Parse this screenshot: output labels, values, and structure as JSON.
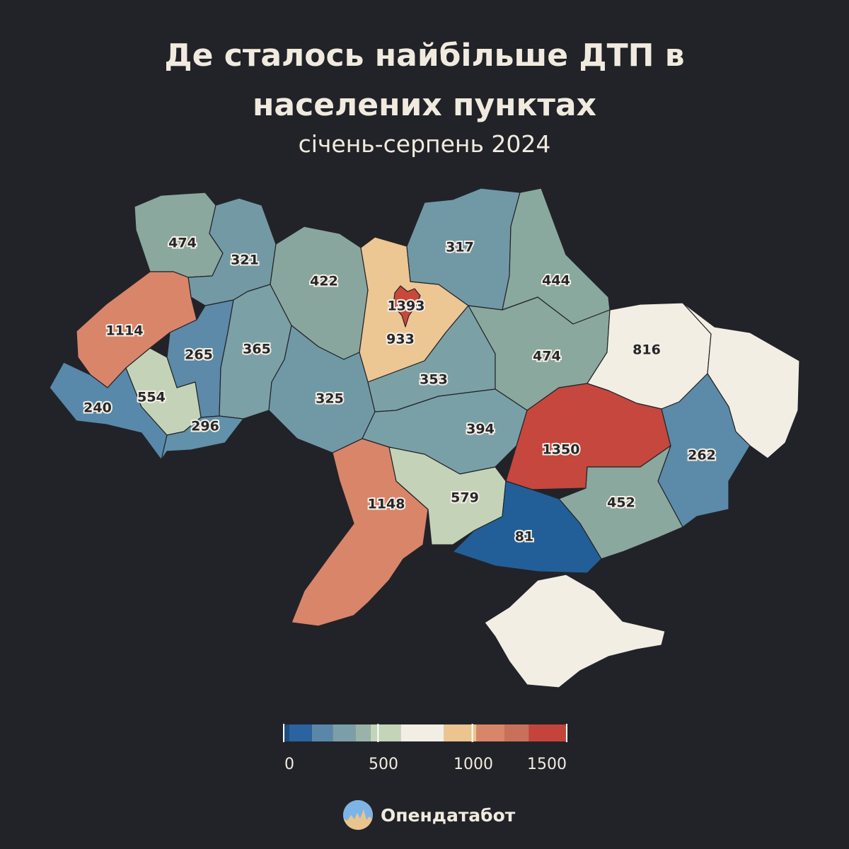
{
  "header": {
    "title_line1": "Де сталось найбільше ДТП в",
    "title_line2": "населених пунктах",
    "subtitle": "січень-серпень 2024"
  },
  "map_data": {
    "regions": [
      {
        "id": "volyn",
        "value": "474",
        "color": "#8aa89e"
      },
      {
        "id": "rivne",
        "value": "321",
        "color": "#7399a4"
      },
      {
        "id": "lviv",
        "value": "1114",
        "color": "#d9856a"
      },
      {
        "id": "ternopil",
        "value": "265",
        "color": "#5c8aa8"
      },
      {
        "id": "khmelnytskyi",
        "value": "365",
        "color": "#7ba0a6"
      },
      {
        "id": "zhytomyr",
        "value": "422",
        "color": "#88a69e"
      },
      {
        "id": "kyiv-oblast",
        "value": "933",
        "color": "#ecc693"
      },
      {
        "id": "kyiv-city",
        "value": "1393",
        "color": "#c8483c"
      },
      {
        "id": "chernihiv",
        "value": "317",
        "color": "#7099a5"
      },
      {
        "id": "sumy",
        "value": "444",
        "color": "#8aa99e"
      },
      {
        "id": "zakarpattia",
        "value": "240",
        "color": "#5889aa"
      },
      {
        "id": "ivano-frankivsk",
        "value": "554",
        "color": "#c4d3b8"
      },
      {
        "id": "chernivtsi",
        "value": "296",
        "color": "#6191ab"
      },
      {
        "id": "vinnytsia",
        "value": "325",
        "color": "#7099a5"
      },
      {
        "id": "cherkasy",
        "value": "353",
        "color": "#7ba1a7"
      },
      {
        "id": "poltava",
        "value": "474",
        "color": "#8aa89e"
      },
      {
        "id": "kharkiv",
        "value": "816",
        "color": "#f3eee3"
      },
      {
        "id": "luhansk",
        "value": "",
        "color": "#f3eee3"
      },
      {
        "id": "kirovohrad",
        "value": "394",
        "color": "#7aa0a7"
      },
      {
        "id": "dnipropetrovsk",
        "value": "1350",
        "color": "#c5473d"
      },
      {
        "id": "donetsk",
        "value": "262",
        "color": "#5b8ba9"
      },
      {
        "id": "odesa",
        "value": "1148",
        "color": "#d9856a"
      },
      {
        "id": "mykolaiv",
        "value": "579",
        "color": "#c4d3b8"
      },
      {
        "id": "zaporizhzhia",
        "value": "452",
        "color": "#8aa89e"
      },
      {
        "id": "kherson",
        "value": "81",
        "color": "#225f98"
      },
      {
        "id": "crimea",
        "value": "",
        "color": "#f3eee3"
      }
    ]
  },
  "legend": {
    "segments": [
      {
        "from": 0,
        "to": 30,
        "color": "#1f4e7c"
      },
      {
        "from": 30,
        "to": 150,
        "color": "#2b62a0"
      },
      {
        "from": 150,
        "to": 260,
        "color": "#5a87a8"
      },
      {
        "from": 260,
        "to": 380,
        "color": "#7c9ea8"
      },
      {
        "from": 380,
        "to": 460,
        "color": "#9ab3aa"
      },
      {
        "from": 460,
        "to": 620,
        "color": "#c3d4b8"
      },
      {
        "from": 620,
        "to": 850,
        "color": "#f3eee3"
      },
      {
        "from": 850,
        "to": 1020,
        "color": "#ecc48f"
      },
      {
        "from": 1020,
        "to": 1170,
        "color": "#d9856a"
      },
      {
        "from": 1170,
        "to": 1300,
        "color": "#c9705b"
      },
      {
        "from": 1300,
        "to": 1500,
        "color": "#c4443b"
      }
    ],
    "markers": [
      0,
      500,
      1000,
      1500
    ],
    "tick_labels": [
      "0",
      "500",
      "1000",
      "1500"
    ]
  },
  "brand": {
    "name": "Опендатабот",
    "logo_icon": "opendatabot-logo-icon"
  }
}
